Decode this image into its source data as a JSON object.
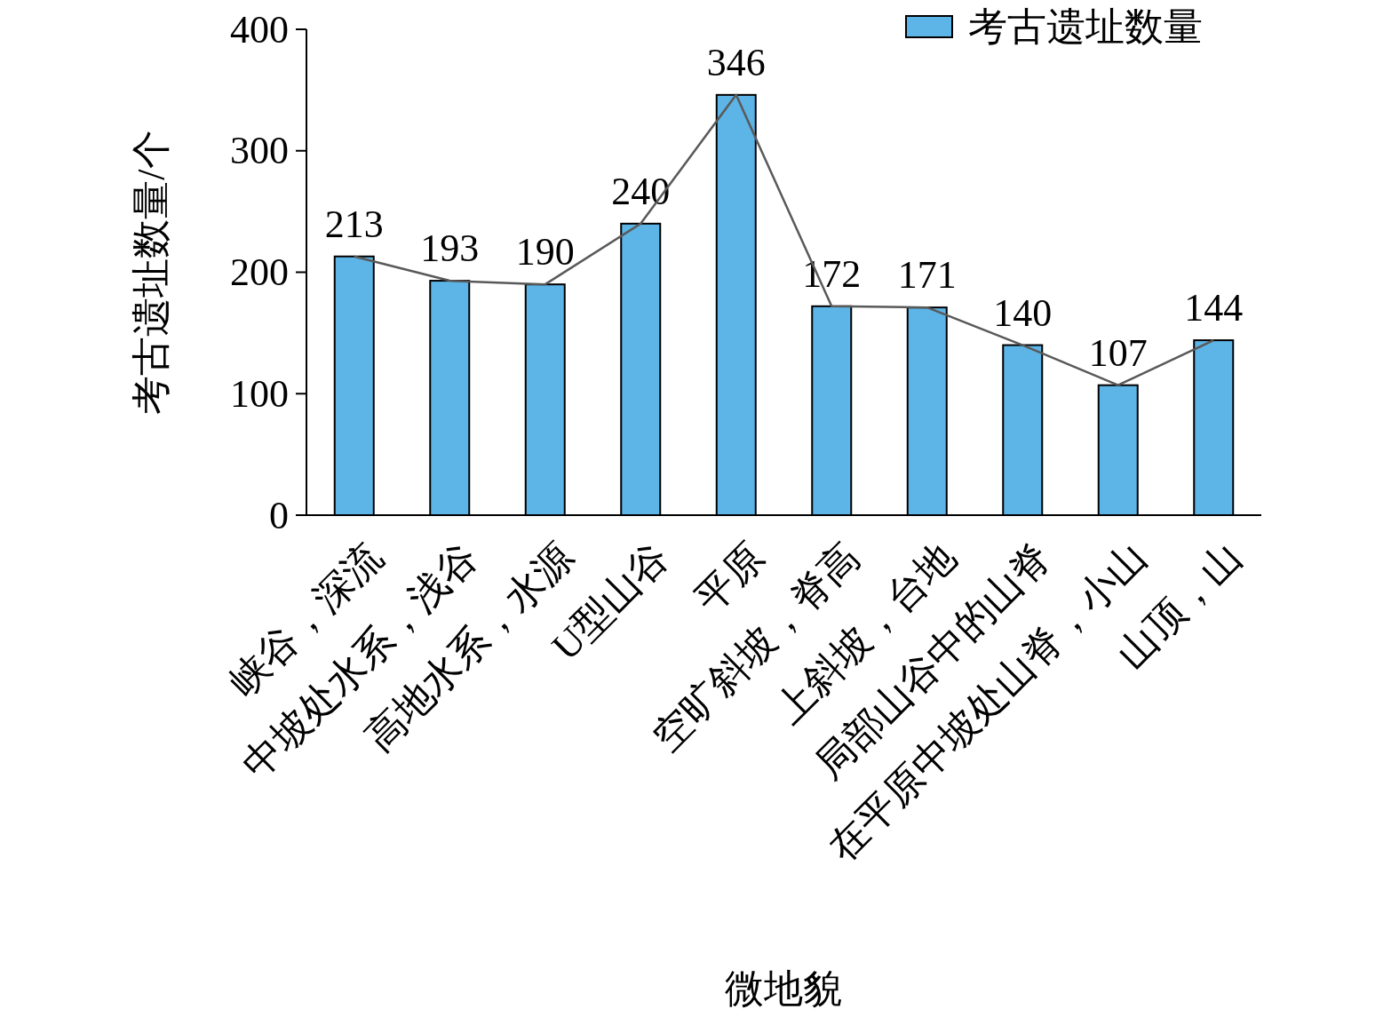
{
  "chart_data": {
    "type": "bar",
    "ylabel": "考古遗址数量/个",
    "xlabel": "微地貌",
    "categories": [
      "峡谷，深流",
      "中坡处水系，浅谷",
      "高地水系，水源",
      "U型山谷",
      "平原",
      "空旷斜坡，脊高",
      "上斜坡，台地",
      "局部山谷中的山脊",
      "在平原中坡处山脊，小山",
      "山顶，山"
    ],
    "series": [
      {
        "name": "考古遗址数量",
        "color": "#5db4e6",
        "values": [
          213,
          193,
          190,
          240,
          346,
          172,
          171,
          140,
          107,
          144
        ],
        "value_labels": [
          "213",
          "193",
          "190",
          "240",
          "346",
          "172",
          "171",
          "140",
          "107",
          "144"
        ]
      },
      {
        "type": "line",
        "color": "#595959",
        "values": [
          213,
          193,
          190,
          240,
          346,
          172,
          171,
          140,
          107,
          144
        ]
      }
    ],
    "ylim": [
      0,
      400
    ],
    "yticks": [
      0,
      100,
      200,
      300,
      400
    ],
    "legend": "top right",
    "grid": false
  }
}
